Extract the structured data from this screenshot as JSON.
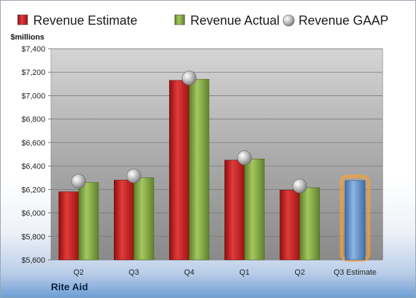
{
  "chart_data": {
    "type": "bar",
    "ylabel": "$millions",
    "ylim": [
      5600,
      7400
    ],
    "ytick_step": 200,
    "categories": [
      "Q2",
      "Q3",
      "Q4",
      "Q1",
      "Q2",
      "Q3 Estimate"
    ],
    "series": [
      {
        "name": "Revenue Estimate",
        "marker": "bar",
        "color": "#d42a2a",
        "values": [
          6180,
          6280,
          7130,
          6450,
          6195,
          null
        ]
      },
      {
        "name": "Revenue Actual",
        "marker": "bar",
        "color": "#8fb24a",
        "values": [
          6260,
          6300,
          7140,
          6460,
          6215,
          null
        ]
      },
      {
        "name": "Revenue GAAP",
        "marker": "bubble",
        "color": "#b9b9b9",
        "values": [
          6270,
          6315,
          7150,
          6470,
          6230,
          null
        ]
      },
      {
        "name": "",
        "marker": "bar",
        "color": "#6c9bd2",
        "highlight": "#f2a23a",
        "values": [
          null,
          null,
          null,
          null,
          null,
          6275
        ]
      }
    ],
    "grid": true,
    "legend_position": "top"
  },
  "company": "Rite Aid"
}
